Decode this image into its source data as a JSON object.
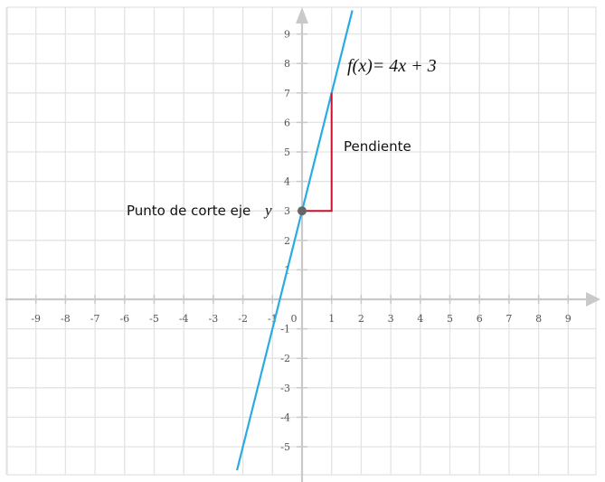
{
  "chart_data": {
    "type": "line",
    "x": [
      -2.2,
      1.7
    ],
    "series": [
      {
        "values": [
          -5.8,
          9.8
        ],
        "color": "#29abe2"
      }
    ],
    "xlim": [
      -10,
      10
    ],
    "ylim": [
      -6,
      10
    ],
    "x_ticks": [
      "-9",
      "-8",
      "-7",
      "-6",
      "-5",
      "-4",
      "-3",
      "-2",
      "-1",
      "0",
      "1",
      "2",
      "3",
      "4",
      "5",
      "6",
      "7",
      "8",
      "9"
    ],
    "y_ticks": [
      "-5",
      "-4",
      "-3",
      "-2",
      "-1",
      "1",
      "2",
      "3",
      "4",
      "5",
      "6",
      "7",
      "8",
      "9"
    ],
    "grid": true,
    "formula": "f(x)= 4x + 3",
    "intercept_point": {
      "x": 0,
      "y": 3
    },
    "slope_triangle": {
      "from": [
        0,
        3
      ],
      "corner": [
        1,
        3
      ],
      "to": [
        1,
        7
      ]
    },
    "annotations": {
      "slope_label": "Pendiente",
      "intercept_label": "Punto de corte eje",
      "intercept_var": "y"
    },
    "colors": {
      "line": "#29abe2",
      "slope": "#c8102e",
      "point": "#666666",
      "grid": "#e3e3e3",
      "axis": "#c9c9c9"
    }
  }
}
